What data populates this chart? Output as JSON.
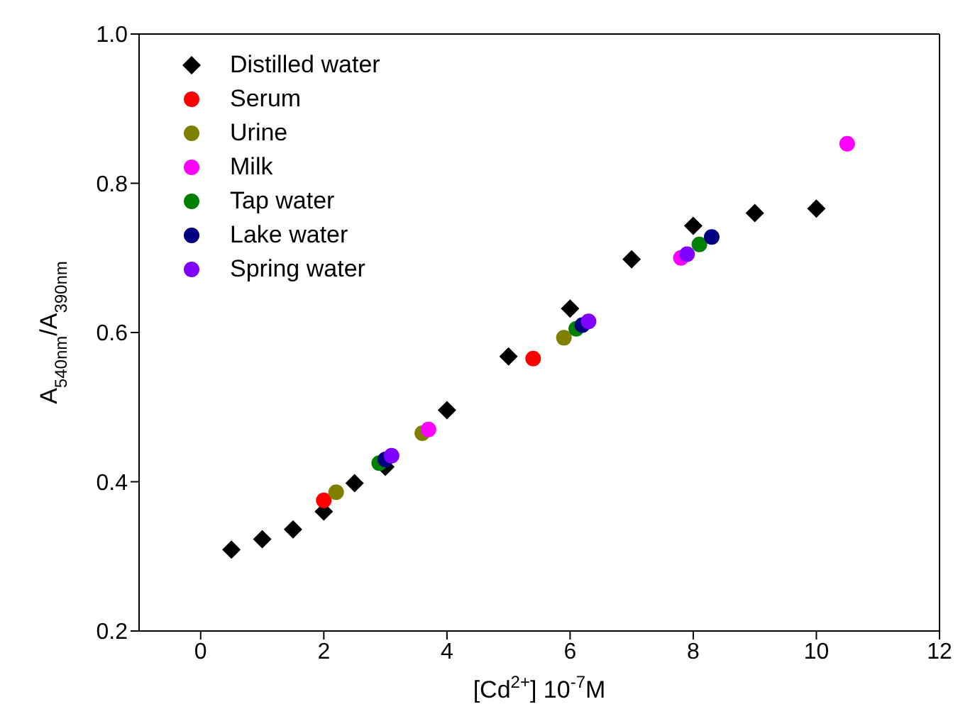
{
  "chart_data": {
    "type": "scatter",
    "xlabel": "[Cd$^{2+}$] 10$^{-7}$M",
    "ylabel": "A$_{540nm}$/A$_{390nm}$",
    "xlim": [
      -1,
      12
    ],
    "xticks": [
      0,
      2,
      4,
      6,
      8,
      10,
      12
    ],
    "ylim": [
      0.2,
      1.0
    ],
    "yticks": [
      0.2,
      0.4,
      0.6,
      0.8,
      {
        "value": 1.0,
        "label": "1.0"
      }
    ],
    "legend": "top left",
    "series": [
      {
        "name": "Distilled water",
        "color": "#000000",
        "marker": "diamond",
        "x": [
          0.5,
          1,
          1.5,
          2,
          2.5,
          3,
          4,
          5,
          6,
          7,
          8,
          9,
          10
        ],
        "values": [
          0.309,
          0.323,
          0.336,
          0.36,
          0.398,
          0.42,
          0.496,
          0.568,
          0.632,
          0.698,
          0.743,
          0.76,
          0.766
        ]
      },
      {
        "name": "Serum",
        "color": "#ff0000",
        "marker": "circle",
        "x": [
          2,
          5.4
        ],
        "values": [
          0.375,
          0.565
        ]
      },
      {
        "name": "Urine",
        "color": "#808000",
        "marker": "circle",
        "x": [
          2.2,
          3.6,
          5.9
        ],
        "values": [
          0.386,
          0.465,
          0.593
        ]
      },
      {
        "name": "Milk",
        "color": "#ff00ff",
        "marker": "circle",
        "x": [
          3.7,
          7.8,
          10.5
        ],
        "values": [
          0.47,
          0.7,
          0.853
        ]
      },
      {
        "name": "Tap water",
        "color": "#008000",
        "marker": "circle",
        "x": [
          2.9,
          6.1,
          8.1
        ],
        "values": [
          0.425,
          0.605,
          0.718
        ]
      },
      {
        "name": "Lake water",
        "color": "#000080",
        "marker": "circle",
        "x": [
          3.0,
          6.2,
          8.3
        ],
        "values": [
          0.43,
          0.61,
          0.728
        ]
      },
      {
        "name": "Spring water",
        "color": "#8000ff",
        "marker": "circle",
        "x": [
          3.1,
          6.3,
          7.9
        ],
        "values": [
          0.435,
          0.615,
          0.705
        ]
      }
    ]
  }
}
